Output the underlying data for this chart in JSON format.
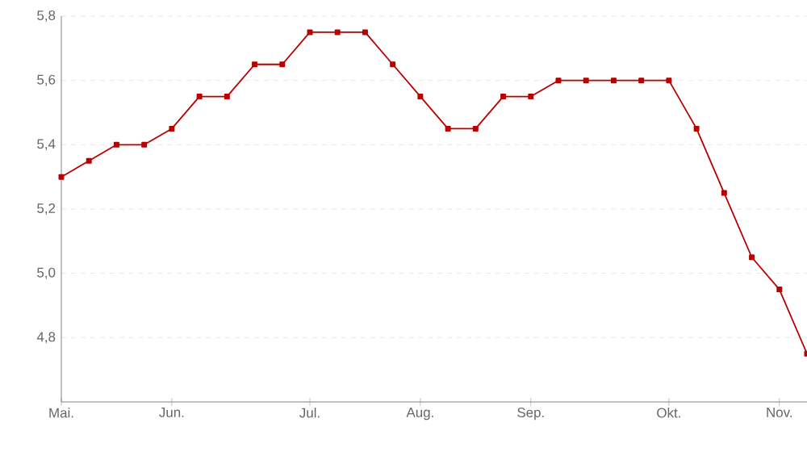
{
  "chart_data": {
    "type": "line",
    "categories": [
      "Mai.",
      null,
      null,
      null,
      "Jun.",
      null,
      null,
      null,
      null,
      "Jul.",
      null,
      null,
      null,
      "Aug.",
      null,
      null,
      null,
      "Sep.",
      null,
      null,
      null,
      null,
      "Okt.",
      null,
      null,
      null,
      "Nov.",
      null
    ],
    "series": [
      {
        "color": "#b80000",
        "values": [
          5.3,
          5.35,
          5.4,
          5.4,
          5.45,
          5.55,
          5.55,
          5.65,
          5.65,
          5.75,
          5.75,
          5.75,
          5.65,
          5.55,
          5.45,
          5.45,
          5.55,
          5.55,
          5.6,
          5.6,
          5.6,
          5.6,
          5.6,
          5.45,
          5.25,
          5.05,
          4.95,
          4.75
        ]
      }
    ],
    "ylim": [
      4.6,
      5.8
    ],
    "yticks": [
      {
        "value": 4.8,
        "label": "4,8"
      },
      {
        "value": 5.0,
        "label": "5,0"
      },
      {
        "value": 5.2,
        "label": "5,2"
      },
      {
        "value": 5.4,
        "label": "5,4"
      },
      {
        "value": 5.6,
        "label": "5,6"
      },
      {
        "value": 5.8,
        "label": "5,8"
      }
    ],
    "grid": "y",
    "marker": "square",
    "line_style": "solid"
  }
}
